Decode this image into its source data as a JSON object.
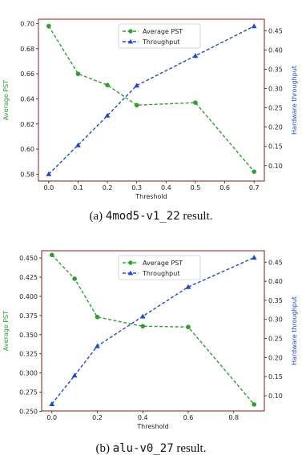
{
  "captions": [
    {
      "prefix": "(a) ",
      "code": "4mod5-v1_22",
      "suffix": " result."
    },
    {
      "prefix": "(b) ",
      "code": "alu-v0_27",
      "suffix": " result."
    }
  ],
  "colors": {
    "pst": "#2ca02c",
    "throughput": "#1f49c8",
    "frame": "#8b1a1a"
  },
  "chart_data": [
    {
      "type": "line",
      "xlabel": "Threshold",
      "ylabel_left": "Average PST",
      "ylabel_right": "Hardware throughput",
      "legend_position": "top-center",
      "grid": false,
      "xlim": [
        -0.035,
        0.735
      ],
      "xticks": [
        0.0,
        0.1,
        0.2,
        0.3,
        0.4,
        0.5,
        0.6,
        0.7
      ],
      "xtick_labels": [
        "0.0",
        "0.1",
        "0.2",
        "0.3",
        "0.4",
        "0.5",
        "0.6",
        "0.7"
      ],
      "ylim_left": [
        0.5745,
        0.7035
      ],
      "yticks_left": [
        0.58,
        0.6,
        0.62,
        0.64,
        0.66,
        0.68,
        0.7
      ],
      "ytick_labels_left": [
        "0.58",
        "0.60",
        "0.62",
        "0.64",
        "0.66",
        "0.68",
        "0.70"
      ],
      "ylim_right": [
        0.06,
        0.48
      ],
      "yticks_right": [
        0.1,
        0.15,
        0.2,
        0.25,
        0.3,
        0.35,
        0.4,
        0.45
      ],
      "ytick_labels_right": [
        "0.10",
        "0.15",
        "0.20",
        "0.25",
        "0.30",
        "0.35",
        "0.40",
        "0.45"
      ],
      "series": [
        {
          "name": "Average PST",
          "axis": "left",
          "marker": "circle",
          "x": [
            0.0,
            0.1,
            0.2,
            0.3,
            0.5,
            0.7
          ],
          "y": [
            0.698,
            0.66,
            0.651,
            0.635,
            0.637,
            0.582
          ]
        },
        {
          "name": "Throughput",
          "axis": "right",
          "marker": "triangle",
          "x": [
            0.0,
            0.1,
            0.2,
            0.3,
            0.5,
            0.7
          ],
          "y": [
            0.078,
            0.153,
            0.23,
            0.308,
            0.385,
            0.462
          ]
        }
      ]
    },
    {
      "type": "line",
      "xlabel": "Threshold",
      "ylabel_left": "Average PST",
      "ylabel_right": "Hardware throughput",
      "legend_position": "top-center",
      "grid": false,
      "xlim": [
        -0.045,
        0.935
      ],
      "xticks": [
        0.0,
        0.2,
        0.4,
        0.6,
        0.8
      ],
      "xtick_labels": [
        "0.0",
        "0.2",
        "0.4",
        "0.6",
        "0.8"
      ],
      "ylim_left": [
        0.2505,
        0.4595
      ],
      "yticks_left": [
        0.25,
        0.275,
        0.3,
        0.325,
        0.35,
        0.375,
        0.4,
        0.425,
        0.45
      ],
      "ytick_labels_left": [
        "0.250",
        "0.275",
        "0.300",
        "0.325",
        "0.350",
        "0.375",
        "0.400",
        "0.425",
        "0.450"
      ],
      "ylim_right": [
        0.06,
        0.48
      ],
      "yticks_right": [
        0.1,
        0.15,
        0.2,
        0.25,
        0.3,
        0.35,
        0.4,
        0.45
      ],
      "ytick_labels_right": [
        "0.10",
        "0.15",
        "0.20",
        "0.25",
        "0.30",
        "0.35",
        "0.40",
        "0.45"
      ],
      "series": [
        {
          "name": "Average PST",
          "axis": "left",
          "marker": "circle",
          "x": [
            0.0,
            0.1,
            0.2,
            0.4,
            0.6,
            0.89
          ],
          "y": [
            0.454,
            0.423,
            0.373,
            0.361,
            0.36,
            0.259
          ]
        },
        {
          "name": "Throughput",
          "axis": "right",
          "marker": "triangle",
          "x": [
            0.0,
            0.1,
            0.2,
            0.4,
            0.6,
            0.89
          ],
          "y": [
            0.078,
            0.153,
            0.23,
            0.308,
            0.385,
            0.462
          ]
        }
      ]
    }
  ]
}
